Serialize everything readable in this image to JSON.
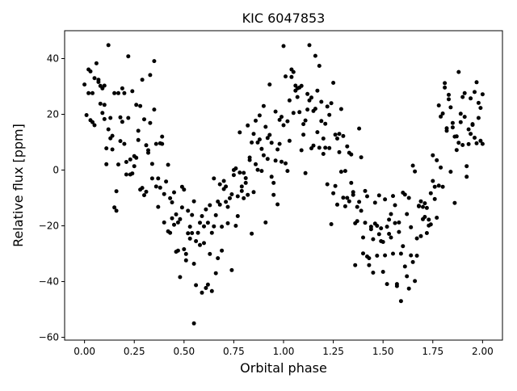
{
  "chart_data": {
    "type": "scatter",
    "title": "KIC 6047853",
    "xlabel": "Orbital phase",
    "ylabel": "Relative flux [ppm]",
    "xlim": [
      -0.1,
      2.1
    ],
    "ylim": [
      -61,
      50
    ],
    "xticks": [
      0.0,
      0.25,
      0.5,
      0.75,
      1.0,
      1.25,
      1.5,
      1.75,
      2.0
    ],
    "xtick_labels": [
      "0.00",
      "0.25",
      "0.50",
      "0.75",
      "1.00",
      "1.25",
      "1.50",
      "1.75",
      "2.00"
    ],
    "yticks": [
      -60,
      -40,
      -20,
      0,
      20,
      40
    ],
    "ytick_labels": [
      "−60",
      "−40",
      "−20",
      "0",
      "20",
      "40"
    ],
    "grid": false,
    "marker_color": "#000000",
    "points": [
      [
        0.0,
        30.7
      ],
      [
        0.01,
        19.7
      ],
      [
        0.02,
        36.1
      ],
      [
        0.02,
        27.6
      ],
      [
        0.03,
        35.4
      ],
      [
        0.03,
        17.9
      ],
      [
        0.04,
        17.2
      ],
      [
        0.04,
        27.6
      ],
      [
        0.05,
        16.1
      ],
      [
        0.05,
        33.0
      ],
      [
        0.06,
        38.3
      ],
      [
        0.07,
        32.4
      ],
      [
        0.07,
        31.6
      ],
      [
        0.08,
        30.2
      ],
      [
        0.08,
        23.8
      ],
      [
        0.09,
        29.3
      ],
      [
        0.09,
        20.5
      ],
      [
        0.1,
        18.3
      ],
      [
        0.1,
        23.4
      ],
      [
        0.1,
        30.3
      ],
      [
        0.11,
        7.8
      ],
      [
        0.11,
        2.1
      ],
      [
        0.12,
        44.8
      ],
      [
        0.12,
        14.6
      ],
      [
        0.13,
        18.7
      ],
      [
        0.13,
        11.4
      ],
      [
        0.14,
        12.3
      ],
      [
        0.14,
        7.4
      ],
      [
        0.15,
        27.6
      ],
      [
        0.15,
        -13.4
      ],
      [
        0.16,
        -7.6
      ],
      [
        0.16,
        -14.6
      ],
      [
        0.17,
        2.0
      ],
      [
        0.17,
        27.6
      ],
      [
        0.18,
        18.9
      ],
      [
        0.18,
        10.4
      ],
      [
        0.19,
        29.3
      ],
      [
        0.19,
        17.3
      ],
      [
        0.2,
        27.6
      ],
      [
        0.2,
        9.4
      ],
      [
        0.21,
        2.9
      ],
      [
        0.21,
        -1.6
      ],
      [
        0.22,
        40.8
      ],
      [
        0.22,
        18.7
      ],
      [
        0.23,
        3.8
      ],
      [
        0.23,
        -1.6
      ],
      [
        0.24,
        -1.2
      ],
      [
        0.24,
        28.3
      ],
      [
        0.25,
        1.4
      ],
      [
        0.25,
        5.0
      ],
      [
        0.26,
        23.4
      ],
      [
        0.26,
        4.4
      ],
      [
        0.27,
        14.1
      ],
      [
        0.27,
        10.8
      ],
      [
        0.28,
        23.0
      ],
      [
        0.28,
        -7.0
      ],
      [
        0.29,
        32.4
      ],
      [
        0.29,
        -6.4
      ],
      [
        0.3,
        -9.0
      ],
      [
        0.3,
        18.2
      ],
      [
        0.31,
        8.9
      ],
      [
        0.31,
        -7.8
      ],
      [
        0.32,
        7.1
      ],
      [
        0.32,
        6.2
      ],
      [
        0.33,
        34.1
      ],
      [
        0.33,
        16.9
      ],
      [
        0.34,
        -3.0
      ],
      [
        0.34,
        2.2
      ],
      [
        0.35,
        39.1
      ],
      [
        0.35,
        21.7
      ],
      [
        0.36,
        9.4
      ],
      [
        0.36,
        -5.9
      ],
      [
        0.37,
        -13.2
      ],
      [
        0.37,
        -3.0
      ],
      [
        0.38,
        -6.3
      ],
      [
        0.38,
        9.6
      ],
      [
        0.39,
        12.0
      ],
      [
        0.39,
        9.4
      ],
      [
        0.4,
        -8.6
      ],
      [
        0.4,
        -18.8
      ],
      [
        0.41,
        -4.1
      ],
      [
        0.42,
        -22.0
      ],
      [
        0.42,
        1.9
      ],
      [
        0.43,
        -10.1
      ],
      [
        0.43,
        -22.5
      ],
      [
        0.44,
        -11.6
      ],
      [
        0.44,
        -17.3
      ],
      [
        0.45,
        -8.0
      ],
      [
        0.45,
        -19.6
      ],
      [
        0.46,
        -29.3
      ],
      [
        0.46,
        -15.9
      ],
      [
        0.47,
        -18.8
      ],
      [
        0.47,
        -28.9
      ],
      [
        0.48,
        -17.6
      ],
      [
        0.48,
        -38.4
      ],
      [
        0.49,
        -6.0
      ],
      [
        0.49,
        -13.4
      ],
      [
        0.5,
        -28.4
      ],
      [
        0.5,
        -7.0
      ],
      [
        0.51,
        -32.4
      ],
      [
        0.51,
        -30.1
      ],
      [
        0.52,
        -14.6
      ],
      [
        0.52,
        -22.7
      ],
      [
        0.53,
        -24.6
      ],
      [
        0.53,
        -20.3
      ],
      [
        0.54,
        -22.6
      ],
      [
        0.54,
        -16.1
      ],
      [
        0.55,
        -11.2
      ],
      [
        0.55,
        -33.6
      ],
      [
        0.55,
        -55.0
      ],
      [
        0.56,
        -25.5
      ],
      [
        0.56,
        -41.3
      ],
      [
        0.57,
        -22.5
      ],
      [
        0.58,
        -26.9
      ],
      [
        0.58,
        -18.9
      ],
      [
        0.59,
        -44.0
      ],
      [
        0.59,
        -16.5
      ],
      [
        0.6,
        -26.2
      ],
      [
        0.6,
        -20.2
      ],
      [
        0.61,
        -42.3
      ],
      [
        0.61,
        -14.1
      ],
      [
        0.62,
        -41.1
      ],
      [
        0.62,
        -18.9
      ],
      [
        0.63,
        -30.1
      ],
      [
        0.63,
        -12.6
      ],
      [
        0.64,
        -43.4
      ],
      [
        0.64,
        -22.5
      ],
      [
        0.65,
        -20.2
      ],
      [
        0.65,
        -3.0
      ],
      [
        0.66,
        -37.0
      ],
      [
        0.66,
        -16.2
      ],
      [
        0.67,
        -31.6
      ],
      [
        0.67,
        -11.3
      ],
      [
        0.68,
        -12.4
      ],
      [
        0.68,
        -5.1
      ],
      [
        0.69,
        -28.9
      ],
      [
        0.69,
        -20.3
      ],
      [
        0.7,
        -6.8
      ],
      [
        0.7,
        -3.9
      ],
      [
        0.71,
        -11.4
      ],
      [
        0.71,
        -5.9
      ],
      [
        0.72,
        -13.2
      ],
      [
        0.72,
        -19.1
      ],
      [
        0.73,
        -10.1
      ],
      [
        0.74,
        -35.9
      ],
      [
        0.74,
        -8.7
      ],
      [
        0.75,
        -1.8
      ],
      [
        0.75,
        0.0
      ],
      [
        0.76,
        0.6
      ],
      [
        0.76,
        -20.0
      ],
      [
        0.77,
        -9.4
      ],
      [
        0.77,
        -16.5
      ],
      [
        0.78,
        13.5
      ],
      [
        0.78,
        -0.9
      ],
      [
        0.79,
        -7.5
      ],
      [
        0.79,
        -5.9
      ],
      [
        0.8,
        -10.1
      ],
      [
        0.8,
        -1.0
      ],
      [
        0.81,
        -2.9
      ],
      [
        0.81,
        -4.6
      ],
      [
        0.82,
        -8.9
      ],
      [
        0.82,
        16.0
      ],
      [
        0.83,
        4.5
      ],
      [
        0.83,
        3.6
      ],
      [
        0.84,
        -22.8
      ],
      [
        0.84,
        9.9
      ],
      [
        0.85,
        -7.9
      ],
      [
        0.85,
        13.0
      ],
      [
        0.86,
        2.1
      ],
      [
        0.86,
        17.7
      ],
      [
        0.87,
        9.9
      ],
      [
        0.87,
        0.1
      ],
      [
        0.88,
        19.6
      ],
      [
        0.88,
        11.0
      ],
      [
        0.89,
        -0.3
      ],
      [
        0.89,
        7.6
      ],
      [
        0.9,
        23.0
      ],
      [
        0.9,
        5.3
      ],
      [
        0.91,
        -18.8
      ],
      [
        0.91,
        15.5
      ],
      [
        0.92,
        4.0
      ],
      [
        0.92,
        11.5
      ],
      [
        0.93,
        30.7
      ],
      [
        0.93,
        12.6
      ],
      [
        0.94,
        -2.4
      ],
      [
        0.94,
        9.8
      ],
      [
        0.95,
        -8.9
      ],
      [
        0.95,
        -4.6
      ],
      [
        0.96,
        21.0
      ],
      [
        0.96,
        3.4
      ],
      [
        0.97,
        -12.3
      ],
      [
        0.97,
        7.4
      ],
      [
        0.98,
        18.0
      ],
      [
        0.98,
        9.4
      ],
      [
        0.99,
        19.1
      ],
      [
        0.99,
        3.0
      ],
      [
        1.0,
        44.5
      ],
      [
        1.0,
        16.1
      ],
      [
        1.01,
        2.4
      ],
      [
        1.01,
        33.6
      ],
      [
        1.02,
        -0.3
      ],
      [
        1.02,
        17.5
      ],
      [
        1.03,
        25.0
      ],
      [
        1.03,
        10.5
      ],
      [
        1.04,
        36.1
      ],
      [
        1.04,
        33.4
      ],
      [
        1.05,
        20.5
      ],
      [
        1.05,
        35.2
      ],
      [
        1.06,
        28.5
      ],
      [
        1.06,
        30.3
      ],
      [
        1.07,
        29.3
      ],
      [
        1.07,
        26.2
      ],
      [
        1.08,
        29.6
      ],
      [
        1.08,
        20.8
      ],
      [
        1.09,
        7.1
      ],
      [
        1.09,
        30.2
      ],
      [
        1.1,
        12.7
      ],
      [
        1.1,
        16.5
      ],
      [
        1.11,
        17.8
      ],
      [
        1.11,
        -1.1
      ],
      [
        1.12,
        27.3
      ],
      [
        1.12,
        21.7
      ],
      [
        1.13,
        25.0
      ],
      [
        1.13,
        44.8
      ],
      [
        1.14,
        7.8
      ],
      [
        1.14,
        26.0
      ],
      [
        1.15,
        21.2
      ],
      [
        1.15,
        8.8
      ],
      [
        1.16,
        41.0
      ],
      [
        1.16,
        22.0
      ],
      [
        1.17,
        28.5
      ],
      [
        1.17,
        13.6
      ],
      [
        1.18,
        8.0
      ],
      [
        1.18,
        37.4
      ],
      [
        1.19,
        24.5
      ],
      [
        1.19,
        17.6
      ],
      [
        1.2,
        11.3
      ],
      [
        1.2,
        5.8
      ],
      [
        1.21,
        16.6
      ],
      [
        1.21,
        8.0
      ],
      [
        1.22,
        22.8
      ],
      [
        1.22,
        -5.1
      ],
      [
        1.23,
        19.8
      ],
      [
        1.23,
        7.9
      ],
      [
        1.24,
        24.0
      ],
      [
        1.24,
        -19.4
      ],
      [
        1.25,
        -8.3
      ],
      [
        1.25,
        31.3
      ],
      [
        1.26,
        12.7
      ],
      [
        1.26,
        -5.7
      ],
      [
        1.27,
        11.3
      ],
      [
        1.27,
        -12.4
      ],
      [
        1.28,
        13.0
      ],
      [
        1.28,
        6.4
      ],
      [
        1.29,
        -0.6
      ],
      [
        1.29,
        21.9
      ],
      [
        1.3,
        -9.9
      ],
      [
        1.3,
        12.2
      ],
      [
        1.31,
        -0.3
      ],
      [
        1.31,
        -13.0
      ],
      [
        1.32,
        8.5
      ],
      [
        1.32,
        -10.0
      ],
      [
        1.33,
        6.2
      ],
      [
        1.33,
        -11.2
      ],
      [
        1.34,
        -4.6
      ],
      [
        1.34,
        5.6
      ],
      [
        1.35,
        -8.9
      ],
      [
        1.35,
        -7.9
      ],
      [
        1.36,
        -34.1
      ],
      [
        1.36,
        -19.1
      ],
      [
        1.37,
        -13.2
      ],
      [
        1.37,
        -18.3
      ],
      [
        1.38,
        14.9
      ],
      [
        1.38,
        -11.4
      ],
      [
        1.39,
        -14.6
      ],
      [
        1.39,
        4.6
      ],
      [
        1.4,
        -29.9
      ],
      [
        1.4,
        -24.2
      ],
      [
        1.41,
        -18.9
      ],
      [
        1.41,
        -7.5
      ],
      [
        1.42,
        -31.0
      ],
      [
        1.42,
        -9.4
      ],
      [
        1.43,
        -31.6
      ],
      [
        1.43,
        -34.1
      ],
      [
        1.44,
        -20.3
      ],
      [
        1.44,
        -21.2
      ],
      [
        1.45,
        -24.8
      ],
      [
        1.45,
        -36.8
      ],
      [
        1.46,
        -11.7
      ],
      [
        1.46,
        -19.2
      ],
      [
        1.47,
        -30.7
      ],
      [
        1.47,
        -20.0
      ],
      [
        1.48,
        -23.0
      ],
      [
        1.48,
        -9.1
      ],
      [
        1.49,
        -20.9
      ],
      [
        1.49,
        -25.5
      ],
      [
        1.5,
        -25.8
      ],
      [
        1.5,
        -36.5
      ],
      [
        1.51,
        -30.6
      ],
      [
        1.51,
        -10.5
      ],
      [
        1.52,
        -40.9
      ],
      [
        1.52,
        -20.3
      ],
      [
        1.53,
        -17.8
      ],
      [
        1.53,
        -22.9
      ],
      [
        1.54,
        -15.8
      ],
      [
        1.54,
        -24.2
      ],
      [
        1.55,
        -9.3
      ],
      [
        1.55,
        -30.0
      ],
      [
        1.56,
        -12.6
      ],
      [
        1.56,
        -19.0
      ],
      [
        1.57,
        -40.9
      ],
      [
        1.57,
        -41.6
      ],
      [
        1.58,
        -22.2
      ],
      [
        1.58,
        -18.8
      ],
      [
        1.59,
        -30.0
      ],
      [
        1.59,
        -47.0
      ],
      [
        1.6,
        -8.1
      ],
      [
        1.6,
        -27.3
      ],
      [
        1.61,
        -34.6
      ],
      [
        1.61,
        -8.8
      ],
      [
        1.62,
        -38.1
      ],
      [
        1.62,
        -15.8
      ],
      [
        1.63,
        -10.0
      ],
      [
        1.63,
        -42.5
      ],
      [
        1.64,
        -30.6
      ],
      [
        1.64,
        -20.5
      ],
      [
        1.65,
        1.6
      ],
      [
        1.65,
        -33.0
      ],
      [
        1.66,
        -0.5
      ],
      [
        1.66,
        -39.8
      ],
      [
        1.67,
        -24.5
      ],
      [
        1.67,
        -30.7
      ],
      [
        1.68,
        -12.8
      ],
      [
        1.68,
        -13.0
      ],
      [
        1.69,
        -11.2
      ],
      [
        1.69,
        -23.7
      ],
      [
        1.7,
        -13.2
      ],
      [
        1.7,
        -17.6
      ],
      [
        1.71,
        -16.8
      ],
      [
        1.71,
        -11.9
      ],
      [
        1.72,
        -13.6
      ],
      [
        1.72,
        -22.6
      ],
      [
        1.73,
        -19.9
      ],
      [
        1.73,
        -17.8
      ],
      [
        1.74,
        -8.3
      ],
      [
        1.74,
        -19.5
      ],
      [
        1.75,
        5.3
      ],
      [
        1.75,
        -3.9
      ],
      [
        1.76,
        -6.0
      ],
      [
        1.76,
        -10.4
      ],
      [
        1.77,
        3.5
      ],
      [
        1.77,
        -17.1
      ],
      [
        1.78,
        23.2
      ],
      [
        1.78,
        -5.6
      ],
      [
        1.79,
        19.2
      ],
      [
        1.79,
        0.9
      ],
      [
        1.8,
        20.3
      ],
      [
        1.8,
        -6.0
      ],
      [
        1.81,
        29.6
      ],
      [
        1.81,
        31.2
      ],
      [
        1.82,
        15.0
      ],
      [
        1.82,
        14.1
      ],
      [
        1.83,
        25.4
      ],
      [
        1.83,
        27.0
      ],
      [
        1.84,
        22.5
      ],
      [
        1.84,
        -0.6
      ],
      [
        1.85,
        16.9
      ],
      [
        1.85,
        15.3
      ],
      [
        1.86,
        12.0
      ],
      [
        1.86,
        -11.8
      ],
      [
        1.87,
        12.1
      ],
      [
        1.87,
        7.2
      ],
      [
        1.88,
        35.2
      ],
      [
        1.88,
        9.8
      ],
      [
        1.89,
        17.2
      ],
      [
        1.89,
        20.2
      ],
      [
        1.9,
        26.2
      ],
      [
        1.9,
        9.0
      ],
      [
        1.91,
        19.1
      ],
      [
        1.91,
        27.6
      ],
      [
        1.92,
        1.4
      ],
      [
        1.92,
        -2.4
      ],
      [
        1.93,
        14.6
      ],
      [
        1.93,
        9.3
      ],
      [
        1.94,
        25.7
      ],
      [
        1.94,
        13.0
      ],
      [
        1.95,
        16.5
      ],
      [
        1.95,
        16.2
      ],
      [
        1.96,
        11.6
      ],
      [
        1.96,
        28.0
      ],
      [
        1.97,
        31.5
      ],
      [
        1.97,
        9.6
      ],
      [
        1.98,
        24.1
      ],
      [
        1.98,
        18.7
      ],
      [
        1.99,
        22.3
      ],
      [
        1.99,
        10.5
      ],
      [
        2.0,
        27.2
      ],
      [
        2.0,
        9.4
      ]
    ]
  }
}
